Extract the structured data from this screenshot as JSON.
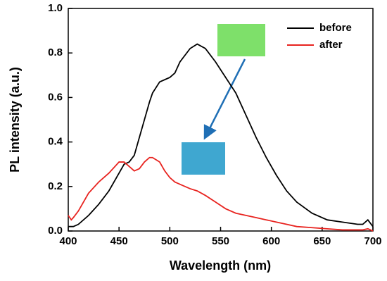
{
  "chart_data": {
    "type": "line",
    "xlabel": "Wavelength (nm)",
    "ylabel": "PL intensity (a.u.)",
    "x": [
      400,
      403,
      405,
      410,
      420,
      430,
      440,
      450,
      455,
      460,
      465,
      470,
      475,
      480,
      483,
      490,
      495,
      500,
      505,
      510,
      520,
      527,
      535,
      545,
      555,
      565,
      575,
      585,
      595,
      605,
      615,
      625,
      640,
      655,
      670,
      685,
      690,
      695,
      700
    ],
    "series": [
      {
        "name": "before",
        "color": "#000000",
        "values": [
          0.02,
          0.02,
          0.02,
          0.03,
          0.07,
          0.12,
          0.18,
          0.26,
          0.3,
          0.31,
          0.34,
          0.42,
          0.5,
          0.58,
          0.62,
          0.67,
          0.68,
          0.69,
          0.71,
          0.76,
          0.82,
          0.84,
          0.82,
          0.76,
          0.69,
          0.62,
          0.52,
          0.42,
          0.33,
          0.25,
          0.18,
          0.13,
          0.08,
          0.05,
          0.04,
          0.03,
          0.03,
          0.05,
          0.02
        ]
      },
      {
        "name": "after",
        "color": "#e8231f",
        "values": [
          0.07,
          0.05,
          0.06,
          0.09,
          0.17,
          0.22,
          0.26,
          0.31,
          0.31,
          0.29,
          0.27,
          0.28,
          0.31,
          0.33,
          0.33,
          0.31,
          0.27,
          0.24,
          0.22,
          0.21,
          0.19,
          0.18,
          0.16,
          0.13,
          0.1,
          0.08,
          0.07,
          0.06,
          0.05,
          0.04,
          0.03,
          0.02,
          0.015,
          0.01,
          0.005,
          0.005,
          0.005,
          0.01,
          0
        ]
      }
    ],
    "xlim": [
      400,
      700
    ],
    "xticks": [
      400,
      450,
      500,
      550,
      600,
      650,
      700
    ],
    "ylim": [
      0,
      1
    ],
    "yticks": [
      {
        "value": 0,
        "label": "0.0"
      },
      0.2,
      0.4,
      0.6,
      0.8,
      {
        "value": 1,
        "label": "1.0"
      }
    ],
    "legend": "upper right"
  }
}
